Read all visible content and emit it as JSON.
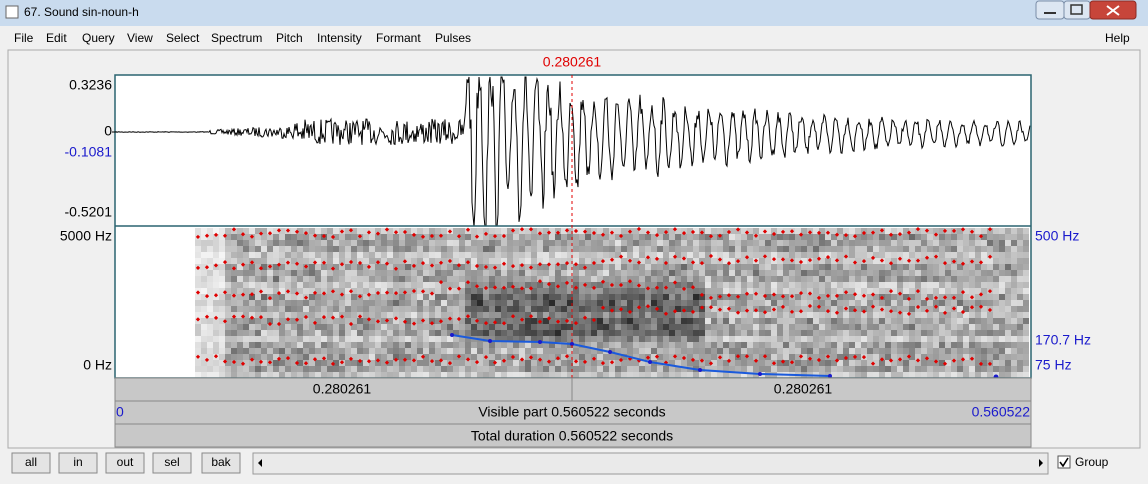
{
  "window": {
    "title": "67. Sound sin-noun-h"
  },
  "menu": [
    "File",
    "Edit",
    "Query",
    "View",
    "Select",
    "Spectrum",
    "Pitch",
    "Intensity",
    "Formant",
    "Pulses"
  ],
  "help": "Help",
  "cursor": {
    "time": "0.280261"
  },
  "waveform": {
    "y_labels": [
      "0.3236",
      "0",
      "-0.1081",
      "-0.5201"
    ]
  },
  "spectrogram": {
    "left_labels": [
      "5000 Hz",
      "0 Hz"
    ],
    "right_labels": [
      "500 Hz",
      "170.7 Hz",
      "75 Hz"
    ]
  },
  "time_bar": {
    "left": "0.280261",
    "right": "0.280261"
  },
  "visible": {
    "start": "0",
    "label": "Visible part 0.560522 seconds",
    "end": "0.560522"
  },
  "total": "Total duration 0.560522 seconds",
  "buttons": [
    "all",
    "in",
    "out",
    "sel",
    "bak"
  ],
  "group": "Group"
}
